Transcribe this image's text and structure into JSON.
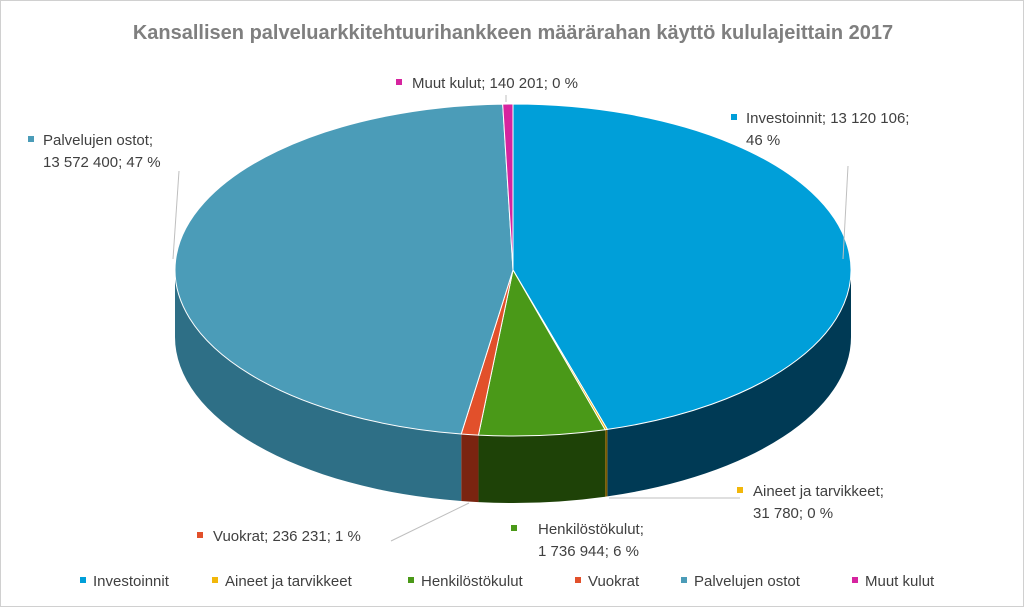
{
  "chart_data": {
    "type": "pie",
    "title": "Kansallisen palveluarkkitehtuurihankkeen määrärahan käyttö kululajeittain 2017",
    "slices": [
      {
        "name": "Investoinnit",
        "value": 13120106,
        "label_name": "Investoinnit;",
        "label_value": "13 120 106;",
        "label_pct": "46 %",
        "color": "#009fd9",
        "side": "#003a55"
      },
      {
        "name": "Aineet ja tarvikkeet",
        "value": 31780,
        "label_name": "Aineet ja tarvikkeet;",
        "label_value": "31 780;",
        "label_pct": "0 %",
        "color": "#f2b70a",
        "side": "#7a5a00"
      },
      {
        "name": "Henkilöstökulut",
        "value": 1736944,
        "label_name": "Henkilöstökulut;",
        "label_value": "1 736 944;",
        "label_pct": "6 %",
        "color": "#4a9918",
        "side": "#1e4207"
      },
      {
        "name": "Vuokrat",
        "value": 236231,
        "label_name": "Vuokrat;",
        "label_value": "236 231;",
        "label_pct": "1 %",
        "color": "#e2502b",
        "side": "#7a2410"
      },
      {
        "name": "Palvelujen ostot",
        "value": 13572400,
        "label_name": "Palvelujen ostot;",
        "label_value": "13 572 400;",
        "label_pct": "47 %",
        "color": "#4b9cb8",
        "side": "#2e6f86"
      },
      {
        "name": "Muut kulut",
        "value": 140201,
        "label_name": "Muut kulut;",
        "label_value": "140 201;",
        "label_pct": "0 %",
        "color": "#d6249f",
        "side": "#6e0f52"
      }
    ],
    "legend_position": "bottom",
    "style": "3d-pie"
  }
}
